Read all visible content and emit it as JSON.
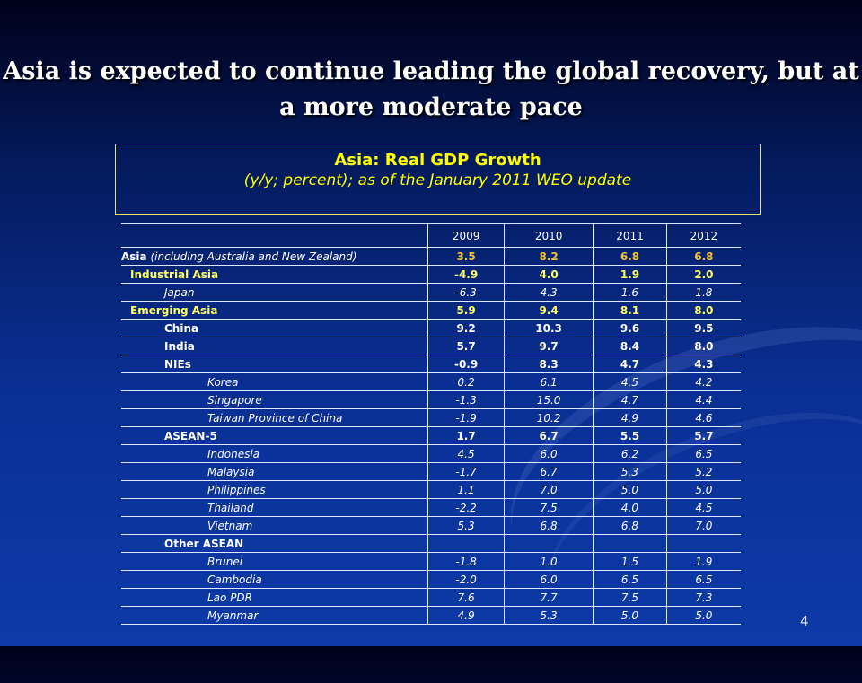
{
  "title": "Asia is expected to continue leading the global recovery, but at a more moderate pace",
  "box": {
    "heading": "Asia: Real GDP Growth",
    "subheading": "(y/y; percent); as of the January 2011 WEO update"
  },
  "table": {
    "years": [
      "2009",
      "2010",
      "2011",
      "2012"
    ],
    "rows": [
      {
        "label": "Asia",
        "note": " (including Australia and New Zealand)",
        "style": "asia",
        "values": [
          "3.5",
          "8.2",
          "6.8",
          "6.8"
        ]
      },
      {
        "label": "Industrial Asia",
        "style": "group",
        "values": [
          "-4.9",
          "4.0",
          "1.9",
          "2.0"
        ]
      },
      {
        "label": "Japan",
        "style": "sub1",
        "values": [
          "-6.3",
          "4.3",
          "1.6",
          "1.8"
        ]
      },
      {
        "label": "Emerging Asia",
        "style": "group",
        "values": [
          "5.9",
          "9.4",
          "8.1",
          "8.0"
        ]
      },
      {
        "label": "China",
        "style": "sub2bold",
        "values": [
          "9.2",
          "10.3",
          "9.6",
          "9.5"
        ]
      },
      {
        "label": "India",
        "style": "sub2bold",
        "values": [
          "5.7",
          "9.7",
          "8.4",
          "8.0"
        ]
      },
      {
        "label": "NIEs",
        "style": "sub2bold",
        "values": [
          "-0.9",
          "8.3",
          "4.7",
          "4.3"
        ]
      },
      {
        "label": "Korea",
        "style": "sub3",
        "values": [
          "0.2",
          "6.1",
          "4.5",
          "4.2"
        ]
      },
      {
        "label": "Singapore",
        "style": "sub3",
        "values": [
          "-1.3",
          "15.0",
          "4.7",
          "4.4"
        ]
      },
      {
        "label": "Taiwan Province of China",
        "style": "sub3",
        "values": [
          "-1.9",
          "10.2",
          "4.9",
          "4.6"
        ]
      },
      {
        "label": "ASEAN-5",
        "style": "sub2bold",
        "values": [
          "1.7",
          "6.7",
          "5.5",
          "5.7"
        ]
      },
      {
        "label": "Indonesia",
        "style": "sub3",
        "values": [
          "4.5",
          "6.0",
          "6.2",
          "6.5"
        ]
      },
      {
        "label": "Malaysia",
        "style": "sub3",
        "values": [
          "-1.7",
          "6.7",
          "5.3",
          "5.2"
        ]
      },
      {
        "label": "Philippines",
        "style": "sub3",
        "values": [
          "1.1",
          "7.0",
          "5.0",
          "5.0"
        ]
      },
      {
        "label": "Thailand",
        "style": "sub3",
        "values": [
          "-2.2",
          "7.5",
          "4.0",
          "4.5"
        ]
      },
      {
        "label": "Vietnam",
        "style": "sub3",
        "values": [
          "5.3",
          "6.8",
          "6.8",
          "7.0"
        ]
      },
      {
        "label": "Other ASEAN",
        "style": "sub2bold",
        "values": [
          "",
          "",
          "",
          ""
        ]
      },
      {
        "label": "Brunei",
        "style": "sub3",
        "values": [
          "-1.8",
          "1.0",
          "1.5",
          "1.9"
        ]
      },
      {
        "label": "Cambodia",
        "style": "sub3",
        "values": [
          "-2.0",
          "6.0",
          "6.5",
          "6.5"
        ]
      },
      {
        "label": "Lao PDR",
        "style": "sub3",
        "values": [
          "7.6",
          "7.7",
          "7.5",
          "7.3"
        ]
      },
      {
        "label": "Myanmar",
        "style": "sub3",
        "values": [
          "4.9",
          "5.3",
          "5.0",
          "5.0"
        ]
      }
    ]
  },
  "page_number": "4",
  "colors": {
    "highlight_yellow": "#ffff66",
    "asia_values": "#f3c13a",
    "background": "#0a2f94"
  }
}
